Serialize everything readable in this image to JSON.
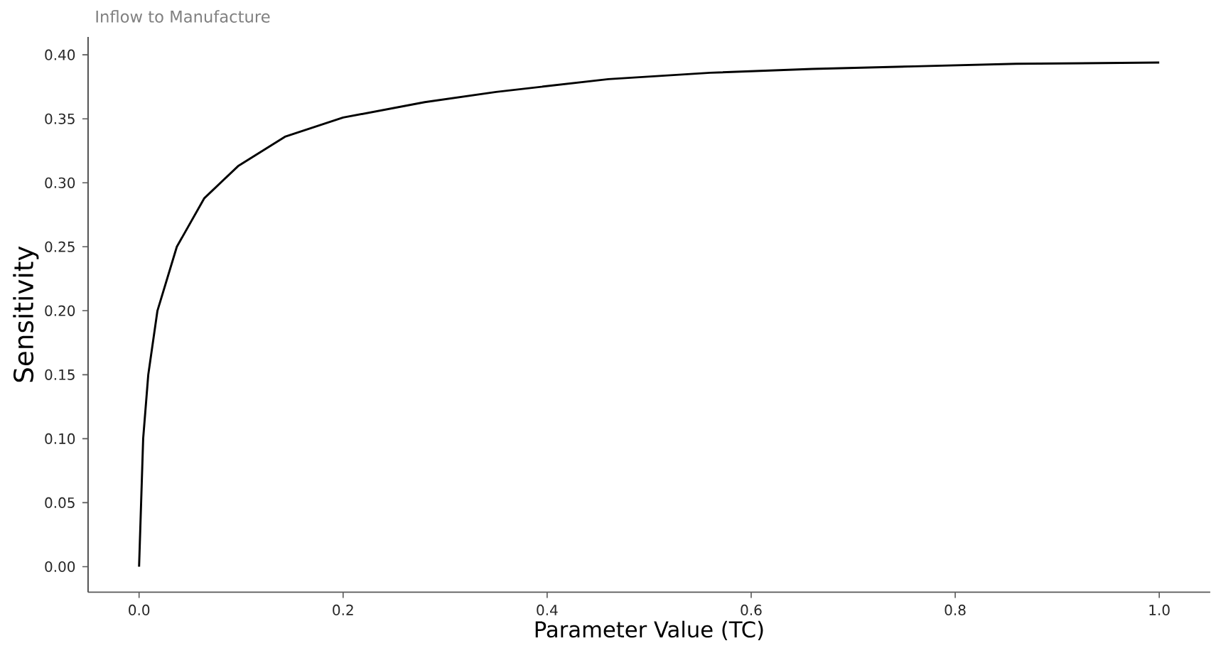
{
  "chart_data": {
    "type": "line",
    "title": "Inflow to Manufacture",
    "xlabel": "Parameter Value (TC)",
    "ylabel": "Sensitivity",
    "xlim": [
      -0.05,
      1.05
    ],
    "ylim": [
      -0.02,
      0.414
    ],
    "xticks": [
      {
        "value": 0,
        "label": "0.0"
      },
      {
        "value": 0.2,
        "label": "0.2"
      },
      {
        "value": 0.4,
        "label": "0.4"
      },
      {
        "value": 0.6,
        "label": "0.6"
      },
      {
        "value": 0.8,
        "label": "0.8"
      },
      {
        "value": 1,
        "label": "1.0"
      }
    ],
    "yticks": [
      {
        "value": 0,
        "label": "0.00"
      },
      {
        "value": 0.05,
        "label": "0.05"
      },
      {
        "value": 0.1,
        "label": "0.10"
      },
      {
        "value": 0.15,
        "label": "0.15"
      },
      {
        "value": 0.2,
        "label": "0.20"
      },
      {
        "value": 0.25,
        "label": "0.25"
      },
      {
        "value": 0.3,
        "label": "0.30"
      },
      {
        "value": 0.35,
        "label": "0.35"
      },
      {
        "value": 0.4,
        "label": "0.40"
      }
    ],
    "grid": false,
    "legend": false,
    "marker": "none",
    "line_style": "solid",
    "x": [
      0,
      0.002,
      0.004,
      0.009,
      0.018,
      0.037,
      0.064,
      0.097,
      0.143,
      0.2,
      0.28,
      0.35,
      0.46,
      0.56,
      0.66,
      0.76,
      0.86,
      1.0
    ],
    "series": [
      {
        "color": "#000000",
        "values": [
          0,
          0.05,
          0.1,
          0.15,
          0.2,
          0.25,
          0.288,
          0.313,
          0.336,
          0.351,
          0.363,
          0.371,
          0.381,
          0.386,
          0.389,
          0.391,
          0.393,
          0.394
        ]
      }
    ]
  }
}
